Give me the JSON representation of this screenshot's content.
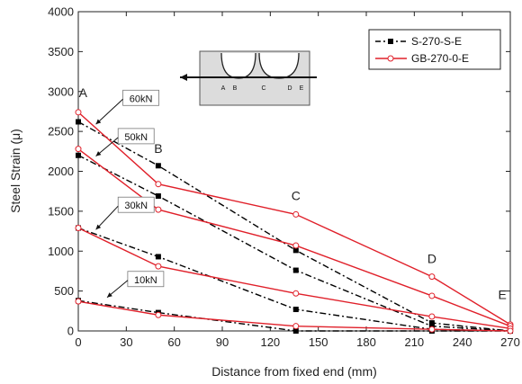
{
  "chart_data": {
    "type": "line",
    "xlabel": "Distance from fixed end  (mm)",
    "ylabel": "Steel Strain  (μ)",
    "xlim": [
      0,
      270
    ],
    "ylim": [
      0,
      4000
    ],
    "xticks": [
      0,
      30,
      60,
      90,
      120,
      150,
      180,
      210,
      240,
      270
    ],
    "yticks": [
      0,
      500,
      1000,
      1500,
      2000,
      2500,
      3000,
      3500,
      4000
    ],
    "grid": false,
    "legend_position": "top-right",
    "series": [
      {
        "name": "S-270-S-E",
        "color": "#000000",
        "style": "dash-dot",
        "marker": "filled-square",
        "groups": [
          {
            "load": "60kN",
            "x": [
              0,
              50,
              136,
              221,
              270
            ],
            "y": [
              2620,
              2070,
              1010,
              100,
              0
            ]
          },
          {
            "load": "50kN",
            "x": [
              0,
              50,
              136,
              221,
              270
            ],
            "y": [
              2200,
              1690,
              760,
              60,
              0
            ]
          },
          {
            "load": "30kN",
            "x": [
              0,
              50,
              136,
              221,
              270
            ],
            "y": [
              1290,
              930,
              270,
              20,
              0
            ]
          },
          {
            "load": "10kN",
            "x": [
              0,
              50,
              136,
              221,
              270
            ],
            "y": [
              380,
              230,
              0,
              0,
              0
            ]
          }
        ]
      },
      {
        "name": "GB-270-0-E",
        "color": "#e0202a",
        "style": "solid",
        "marker": "open-circle",
        "groups": [
          {
            "load": "60kN",
            "x": [
              0,
              50,
              136,
              221,
              270
            ],
            "y": [
              2740,
              1840,
              1460,
              680,
              80
            ]
          },
          {
            "load": "50kN",
            "x": [
              0,
              50,
              136,
              221,
              270
            ],
            "y": [
              2280,
              1520,
              1070,
              440,
              60
            ]
          },
          {
            "load": "30kN",
            "x": [
              0,
              50,
              136,
              221,
              270
            ],
            "y": [
              1290,
              810,
              470,
              180,
              30
            ]
          },
          {
            "load": "10kN",
            "x": [
              0,
              50,
              136,
              221,
              270
            ],
            "y": [
              370,
              200,
              60,
              20,
              0
            ]
          }
        ]
      }
    ],
    "point_labels": [
      {
        "text": "A",
        "x": 3,
        "y": 2930
      },
      {
        "text": "B",
        "x": 50,
        "y": 2230
      },
      {
        "text": "C",
        "x": 136,
        "y": 1640
      },
      {
        "text": "D",
        "x": 221,
        "y": 850
      },
      {
        "text": "E",
        "x": 265,
        "y": 400
      }
    ],
    "load_labels": [
      {
        "text": "60kN",
        "x": 29,
        "y": 2870,
        "arrow_to": [
          11,
          2590
        ]
      },
      {
        "text": "50kN",
        "x": 26,
        "y": 2390,
        "arrow_to": [
          11,
          2190
        ]
      },
      {
        "text": "30kN",
        "x": 26,
        "y": 1530,
        "arrow_to": [
          11,
          1270
        ]
      },
      {
        "text": "10kN",
        "x": 32,
        "y": 600,
        "arrow_to": [
          18,
          420
        ]
      }
    ],
    "inset": {
      "labels": [
        "A",
        "B",
        "C",
        "D",
        "E"
      ]
    }
  }
}
